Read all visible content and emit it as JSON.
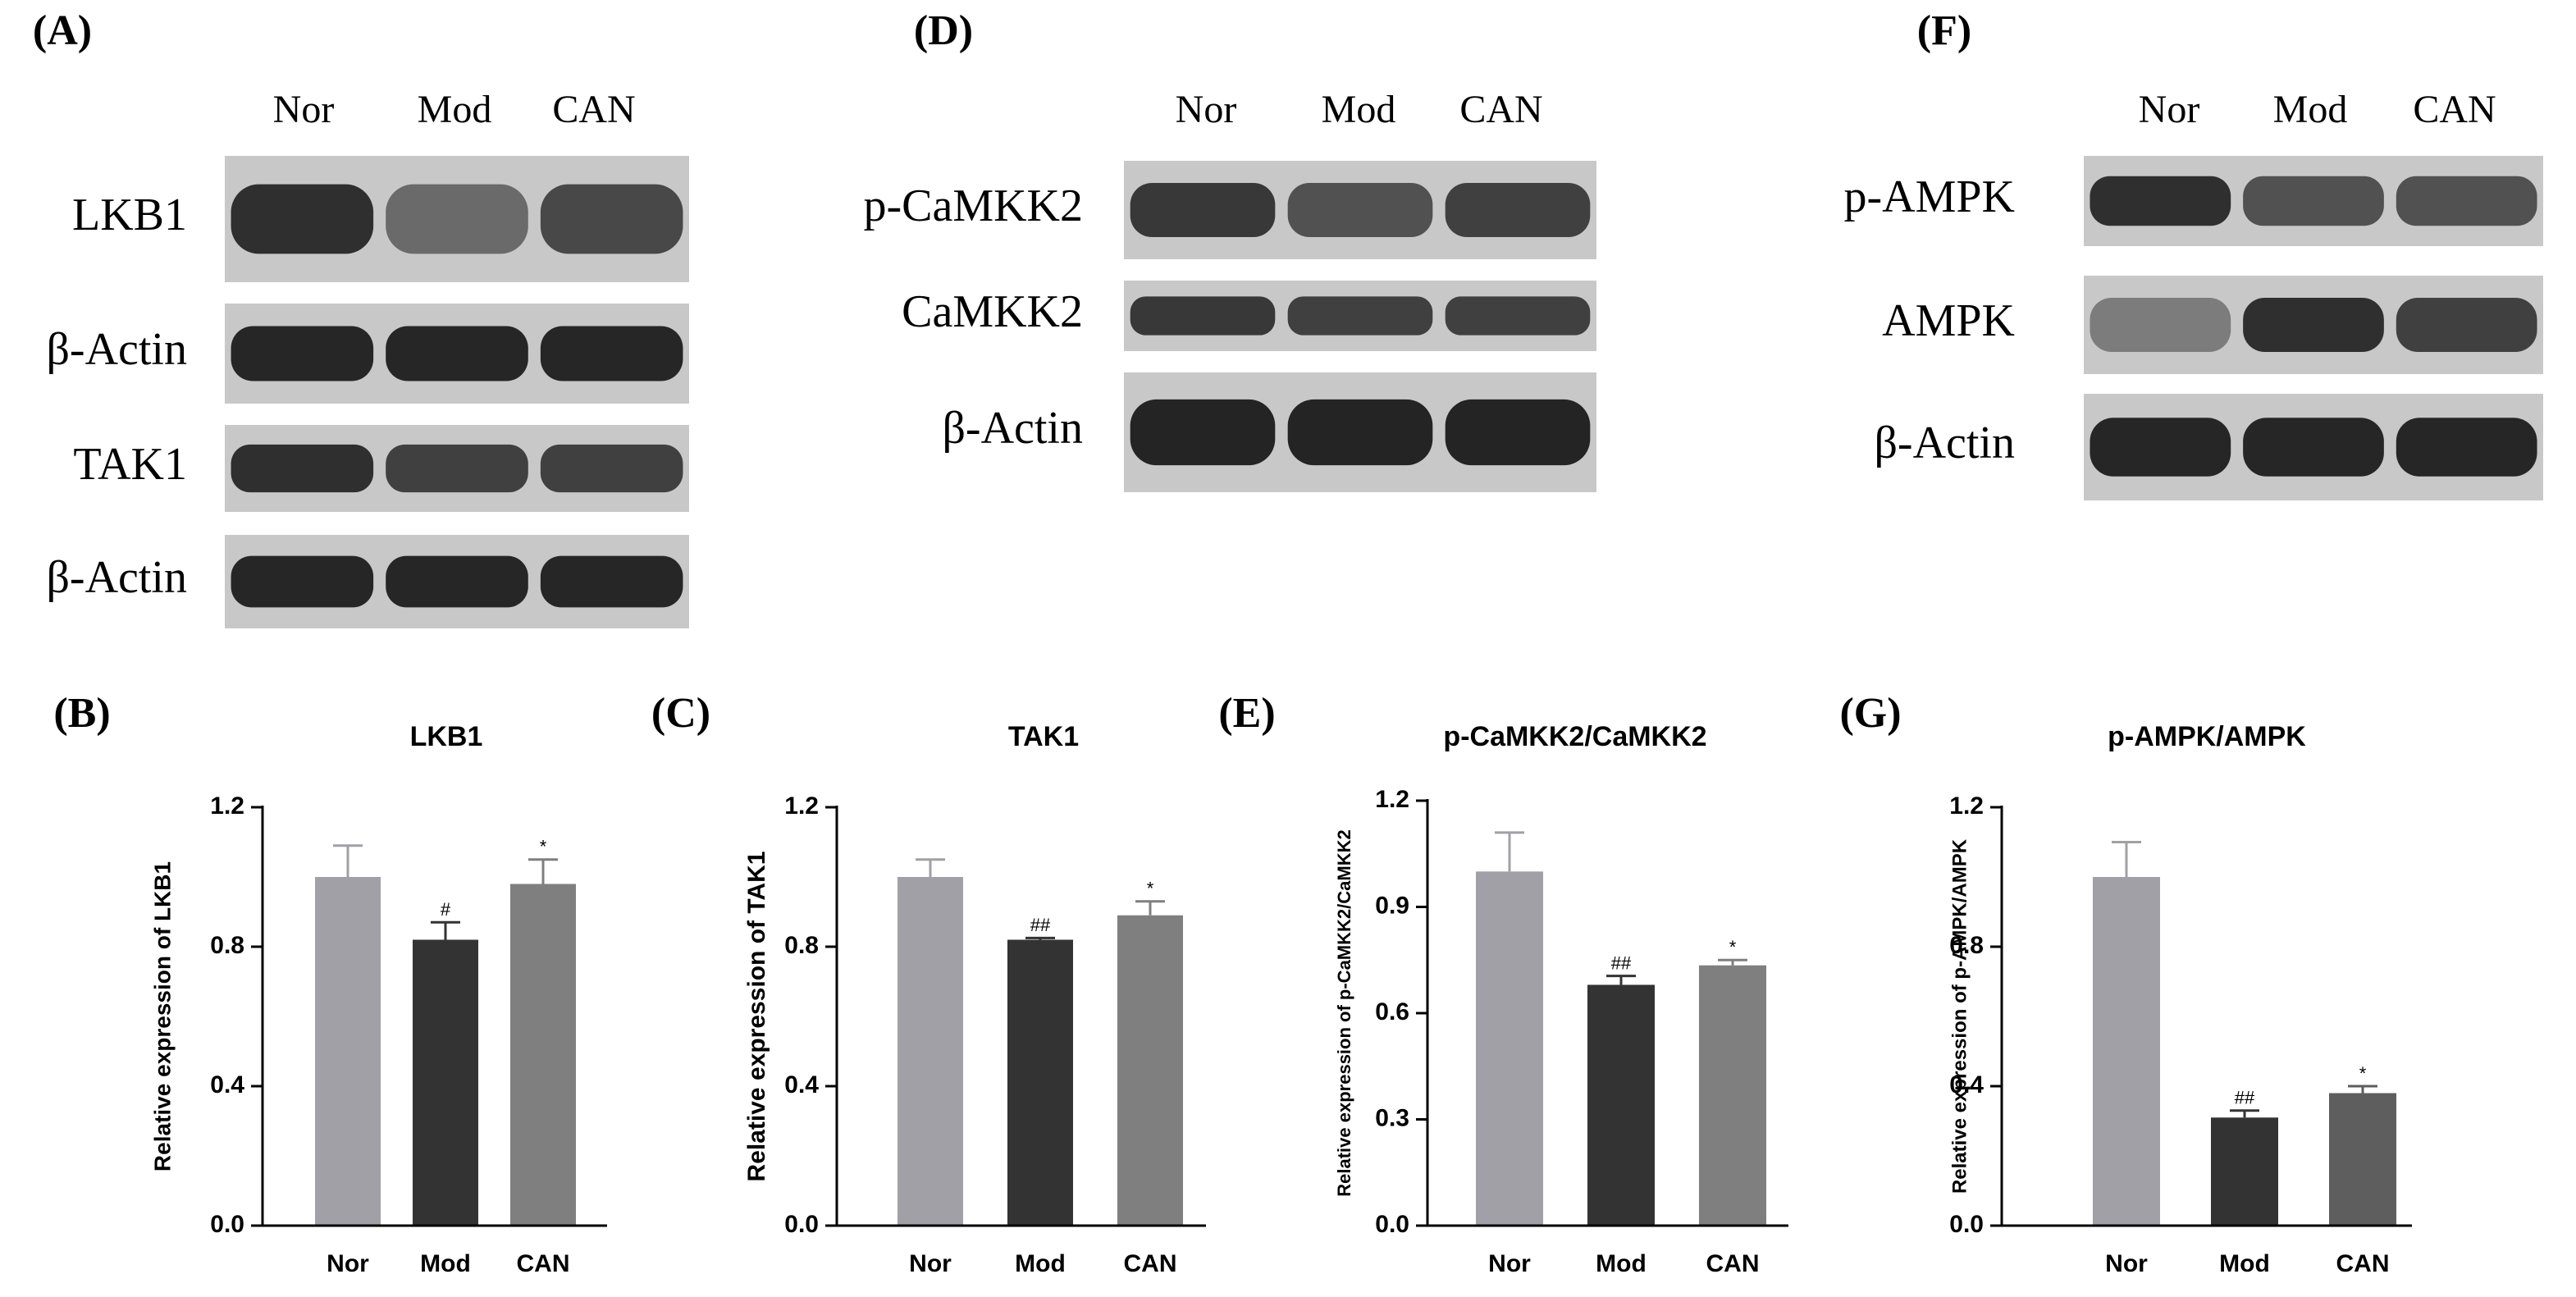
{
  "blots": [
    {
      "panel": "(A)",
      "lanes": [
        "Nor",
        "Mod",
        "CAN"
      ],
      "rows": [
        "LKB1",
        "β-Actin",
        "TAK1",
        "β-Actin"
      ]
    },
    {
      "panel": "(D)",
      "lanes": [
        "Nor",
        "Mod",
        "CAN"
      ],
      "rows": [
        "p-CaMKK2",
        "CaMKK2",
        "β-Actin"
      ]
    },
    {
      "panel": "(F)",
      "lanes": [
        "Nor",
        "Mod",
        "CAN"
      ],
      "rows": [
        "p-AMPK",
        "AMPK",
        "β-Actin"
      ]
    }
  ],
  "chart_data": [
    {
      "type": "bar",
      "panel": "(B)",
      "title": "LKB1",
      "ylabel": "Relative expression of LKB1",
      "categories": [
        "Nor",
        "Mod",
        "CAN"
      ],
      "values": [
        1.0,
        0.82,
        0.98
      ],
      "errors": [
        0.09,
        0.05,
        0.07
      ],
      "annotations": [
        null,
        "#",
        "*"
      ],
      "colors": [
        "#a0a0a6",
        "#333333",
        "#7f7f7f"
      ],
      "ylim": [
        0,
        1.2
      ],
      "yticks": [
        {
          "value": 0,
          "label": "0.0"
        },
        0.4,
        0.8,
        1.2
      ]
    },
    {
      "type": "bar",
      "panel": "(C)",
      "title": "TAK1",
      "ylabel": "Relative expression of TAK1",
      "categories": [
        "Nor",
        "Mod",
        "CAN"
      ],
      "values": [
        1.0,
        0.82,
        0.89
      ],
      "errors": [
        0.05,
        0.005,
        0.04
      ],
      "annotations": [
        null,
        "##",
        "*"
      ],
      "colors": [
        "#a0a0a6",
        "#333333",
        "#7f7f7f"
      ],
      "ylim": [
        0,
        1.2
      ],
      "yticks": [
        {
          "value": 0,
          "label": "0.0"
        },
        0.4,
        0.8,
        1.2
      ]
    },
    {
      "type": "bar",
      "panel": "(E)",
      "title": "p-CaMKK2/CaMKK2",
      "ylabel": "Relative expression of p-CaMKK2/CaMKK2",
      "categories": [
        "Nor",
        "Mod",
        "CAN"
      ],
      "values": [
        1.0,
        0.68,
        0.735
      ],
      "errors": [
        0.11,
        0.025,
        0.015
      ],
      "annotations": [
        null,
        "##",
        "*"
      ],
      "colors": [
        "#a0a0a6",
        "#333333",
        "#7f7f7f"
      ],
      "ylim": [
        0,
        1.2
      ],
      "yticks": [
        {
          "value": 0,
          "label": "0.0"
        },
        0.3,
        0.6,
        0.9,
        1.2
      ]
    },
    {
      "type": "bar",
      "panel": "(G)",
      "title": "p-AMPK/AMPK",
      "ylabel": "Relative expression of p-AMPK/AMPK",
      "categories": [
        "Nor",
        "Mod",
        "CAN"
      ],
      "values": [
        1.0,
        0.31,
        0.38
      ],
      "errors": [
        0.1,
        0.02,
        0.02
      ],
      "annotations": [
        null,
        "##",
        "*"
      ],
      "colors": [
        "#a0a0a6",
        "#333333",
        "#5e5e5e"
      ],
      "ylim": [
        0,
        1.2
      ],
      "yticks": [
        {
          "value": 0,
          "label": "0.0"
        },
        0.4,
        0.8,
        1.2
      ]
    }
  ]
}
